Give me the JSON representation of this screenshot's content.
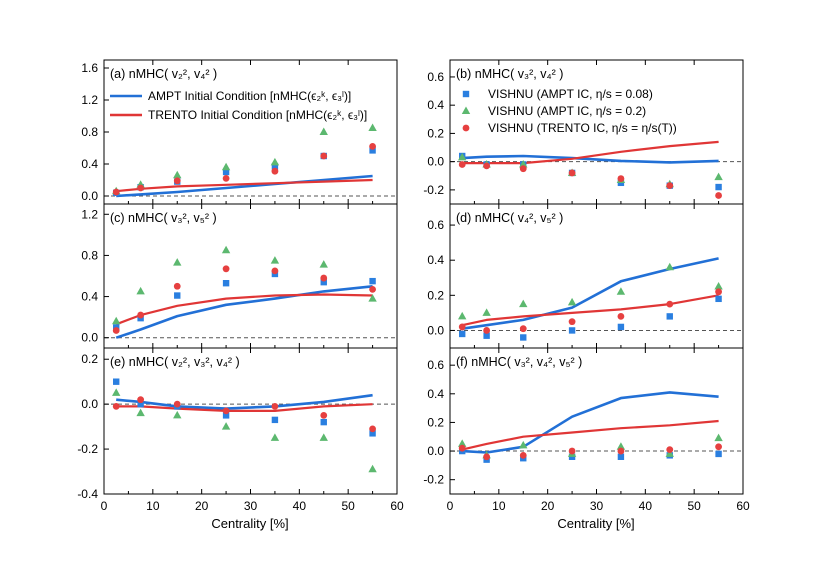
{
  "colors": {
    "ampt": "#2270d6",
    "trento": "#e03636",
    "vis008": "#2a7fe0",
    "vis02": "#5cb86f",
    "vistrento": "#e64040",
    "axis": "#000000",
    "zero": "#555555"
  },
  "chart_data": {
    "type": "scatter",
    "xlabel": "Centrality [%]",
    "xlim": [
      0,
      60
    ],
    "xticks": [
      0,
      10,
      20,
      30,
      40,
      50,
      60
    ],
    "legend_model": [
      {
        "key": "ampt",
        "label": "AMPT Initial Condition [nMHC(ϵ₂ᵏ, ϵ₃ˡ)]",
        "marker": "line"
      },
      {
        "key": "trento",
        "label": "TRENTO Initial Condition [nMHC(ϵ₂ᵏ, ϵ₃ˡ)]",
        "marker": "line"
      }
    ],
    "legend_data": [
      {
        "key": "vis008",
        "label": "VISHNU (AMPT IC, η/s = 0.08)",
        "marker": "square"
      },
      {
        "key": "vis02",
        "label": "VISHNU (AMPT IC, η/s = 0.2)",
        "marker": "triangle"
      },
      {
        "key": "vistrento",
        "label": "VISHNU (TRENTO IC, η/s = η/s(T))",
        "marker": "circle"
      }
    ],
    "panels": [
      {
        "id": "a",
        "title": "(a) nMHC( v₂², v₄² )",
        "ylim": [
          -0.1,
          1.7
        ],
        "yticks": [
          0.0,
          0.4,
          0.8,
          1.2,
          1.6
        ],
        "lines": {
          "ampt": [
            [
              2.5,
              0.0
            ],
            [
              7.5,
              0.02
            ],
            [
              15,
              0.05
            ],
            [
              25,
              0.1
            ],
            [
              35,
              0.15
            ],
            [
              45,
              0.2
            ],
            [
              55,
              0.25
            ]
          ],
          "trento": [
            [
              2.5,
              0.06
            ],
            [
              7.5,
              0.09
            ],
            [
              15,
              0.12
            ],
            [
              25,
              0.14
            ],
            [
              35,
              0.16
            ],
            [
              45,
              0.18
            ],
            [
              55,
              0.2
            ]
          ]
        },
        "points": {
          "vis008": [
            [
              2.5,
              0.04
            ],
            [
              7.5,
              0.11
            ],
            [
              15,
              0.18
            ],
            [
              25,
              0.3
            ],
            [
              35,
              0.37
            ],
            [
              45,
              0.5
            ],
            [
              55,
              0.57
            ]
          ],
          "vis02": [
            [
              2.5,
              0.06
            ],
            [
              7.5,
              0.14
            ],
            [
              15,
              0.26
            ],
            [
              25,
              0.36
            ],
            [
              35,
              0.42
            ],
            [
              45,
              0.8
            ],
            [
              55,
              0.85
            ]
          ],
          "vistrento": [
            [
              2.5,
              0.05
            ],
            [
              7.5,
              0.1
            ],
            [
              15,
              0.19
            ],
            [
              25,
              0.22
            ],
            [
              35,
              0.31
            ],
            [
              45,
              0.5
            ],
            [
              55,
              0.62
            ]
          ]
        }
      },
      {
        "id": "b",
        "title": "(b) nMHC( v₃², v₄² )",
        "ylim": [
          -0.3,
          0.72
        ],
        "yticks": [
          -0.2,
          0.0,
          0.2,
          0.4,
          0.6
        ],
        "lines": {
          "ampt": [
            [
              2.5,
              0.025
            ],
            [
              7.5,
              0.035
            ],
            [
              15,
              0.04
            ],
            [
              25,
              0.025
            ],
            [
              35,
              0.005
            ],
            [
              45,
              -0.005
            ],
            [
              55,
              0.005
            ]
          ],
          "trento": [
            [
              2.5,
              -0.01
            ],
            [
              7.5,
              -0.01
            ],
            [
              15,
              -0.01
            ],
            [
              25,
              0.02
            ],
            [
              35,
              0.07
            ],
            [
              45,
              0.11
            ],
            [
              55,
              0.14
            ]
          ]
        },
        "points": {
          "vis008": [
            [
              2.5,
              0.04
            ],
            [
              7.5,
              -0.02
            ],
            [
              15,
              -0.02
            ],
            [
              25,
              -0.08
            ],
            [
              35,
              -0.15
            ],
            [
              45,
              -0.17
            ],
            [
              55,
              -0.18
            ]
          ],
          "vis02": [
            [
              2.5,
              0.03
            ],
            [
              7.5,
              -0.02
            ],
            [
              15,
              -0.02
            ],
            [
              25,
              -0.08
            ],
            [
              35,
              -0.13
            ],
            [
              45,
              -0.16
            ],
            [
              55,
              -0.11
            ]
          ],
          "vistrento": [
            [
              2.5,
              -0.02
            ],
            [
              7.5,
              -0.03
            ],
            [
              15,
              -0.05
            ],
            [
              25,
              -0.08
            ],
            [
              35,
              -0.12
            ],
            [
              45,
              -0.17
            ],
            [
              55,
              -0.24
            ]
          ]
        }
      },
      {
        "id": "c",
        "title": "(c) nMHC( v₃², v₅² )",
        "ylim": [
          -0.1,
          1.3
        ],
        "yticks": [
          0.0,
          0.4,
          0.8,
          1.2
        ],
        "lines": {
          "ampt": [
            [
              2.5,
              0.0
            ],
            [
              7.5,
              0.08
            ],
            [
              15,
              0.21
            ],
            [
              25,
              0.32
            ],
            [
              35,
              0.38
            ],
            [
              45,
              0.45
            ],
            [
              55,
              0.5
            ]
          ],
          "trento": [
            [
              2.5,
              0.13
            ],
            [
              7.5,
              0.22
            ],
            [
              15,
              0.31
            ],
            [
              25,
              0.38
            ],
            [
              35,
              0.41
            ],
            [
              45,
              0.42
            ],
            [
              55,
              0.41
            ]
          ]
        },
        "points": {
          "vis008": [
            [
              2.5,
              0.1
            ],
            [
              7.5,
              0.19
            ],
            [
              15,
              0.41
            ],
            [
              25,
              0.53
            ],
            [
              35,
              0.62
            ],
            [
              45,
              0.54
            ],
            [
              55,
              0.55
            ]
          ],
          "vis02": [
            [
              2.5,
              0.16
            ],
            [
              7.5,
              0.45
            ],
            [
              15,
              0.73
            ],
            [
              25,
              0.85
            ],
            [
              35,
              0.75
            ],
            [
              45,
              0.71
            ],
            [
              55,
              0.38
            ]
          ],
          "vistrento": [
            [
              2.5,
              0.07
            ],
            [
              7.5,
              0.22
            ],
            [
              15,
              0.5
            ],
            [
              25,
              0.67
            ],
            [
              35,
              0.65
            ],
            [
              45,
              0.58
            ],
            [
              55,
              0.47
            ]
          ]
        }
      },
      {
        "id": "d",
        "title": "(d) nMHC( v₄², v₅² )",
        "ylim": [
          -0.1,
          0.72
        ],
        "yticks": [
          0.0,
          0.2,
          0.4,
          0.6
        ],
        "lines": {
          "ampt": [
            [
              2.5,
              0.01
            ],
            [
              7.5,
              0.03
            ],
            [
              15,
              0.06
            ],
            [
              25,
              0.13
            ],
            [
              35,
              0.28
            ],
            [
              45,
              0.35
            ],
            [
              55,
              0.41
            ]
          ],
          "trento": [
            [
              2.5,
              0.03
            ],
            [
              7.5,
              0.06
            ],
            [
              15,
              0.08
            ],
            [
              25,
              0.1
            ],
            [
              35,
              0.12
            ],
            [
              45,
              0.15
            ],
            [
              55,
              0.2
            ]
          ]
        },
        "points": {
          "vis008": [
            [
              2.5,
              -0.02
            ],
            [
              7.5,
              -0.03
            ],
            [
              15,
              -0.04
            ],
            [
              25,
              0.0
            ],
            [
              35,
              0.02
            ],
            [
              45,
              0.08
            ],
            [
              55,
              0.18
            ]
          ],
          "vis02": [
            [
              2.5,
              0.08
            ],
            [
              7.5,
              0.1
            ],
            [
              15,
              0.15
            ],
            [
              25,
              0.16
            ],
            [
              35,
              0.22
            ],
            [
              45,
              0.36
            ],
            [
              55,
              0.25
            ]
          ],
          "vistrento": [
            [
              2.5,
              0.02
            ],
            [
              7.5,
              0.0
            ],
            [
              15,
              0.01
            ],
            [
              25,
              0.05
            ],
            [
              35,
              0.08
            ],
            [
              45,
              0.15
            ],
            [
              55,
              0.22
            ]
          ]
        }
      },
      {
        "id": "e",
        "title": "(e) nMHC( v₂², v₃², v₄² )",
        "ylim": [
          -0.4,
          0.25
        ],
        "yticks": [
          -0.4,
          -0.2,
          0.0,
          0.2
        ],
        "lines": {
          "ampt": [
            [
              2.5,
              0.02
            ],
            [
              7.5,
              0.01
            ],
            [
              15,
              -0.01
            ],
            [
              25,
              -0.02
            ],
            [
              35,
              -0.01
            ],
            [
              45,
              0.01
            ],
            [
              55,
              0.04
            ]
          ],
          "trento": [
            [
              2.5,
              -0.01
            ],
            [
              7.5,
              -0.01
            ],
            [
              15,
              -0.02
            ],
            [
              25,
              -0.03
            ],
            [
              35,
              -0.03
            ],
            [
              45,
              -0.01
            ],
            [
              55,
              0.0
            ]
          ]
        },
        "points": {
          "vis008": [
            [
              2.5,
              0.1
            ],
            [
              7.5,
              0.0
            ],
            [
              15,
              -0.01
            ],
            [
              25,
              -0.05
            ],
            [
              35,
              -0.07
            ],
            [
              45,
              -0.08
            ],
            [
              55,
              -0.13
            ]
          ],
          "vis02": [
            [
              2.5,
              0.05
            ],
            [
              7.5,
              -0.04
            ],
            [
              15,
              -0.05
            ],
            [
              25,
              -0.1
            ],
            [
              35,
              -0.15
            ],
            [
              45,
              -0.15
            ],
            [
              55,
              -0.29
            ]
          ],
          "vistrento": [
            [
              2.5,
              -0.01
            ],
            [
              7.5,
              0.02
            ],
            [
              15,
              0.0
            ],
            [
              25,
              -0.03
            ],
            [
              35,
              -0.01
            ],
            [
              45,
              -0.05
            ],
            [
              55,
              -0.11
            ]
          ]
        }
      },
      {
        "id": "f",
        "title": "(f) nMHC( v₃², v₄², v₅² )",
        "ylim": [
          -0.3,
          0.72
        ],
        "yticks": [
          -0.2,
          0.0,
          0.2,
          0.4,
          0.6
        ],
        "lines": {
          "ampt": [
            [
              2.5,
              0.0
            ],
            [
              7.5,
              -0.01
            ],
            [
              15,
              0.03
            ],
            [
              25,
              0.24
            ],
            [
              35,
              0.37
            ],
            [
              45,
              0.41
            ],
            [
              55,
              0.38
            ]
          ],
          "trento": [
            [
              2.5,
              0.01
            ],
            [
              7.5,
              0.05
            ],
            [
              15,
              0.1
            ],
            [
              25,
              0.13
            ],
            [
              35,
              0.16
            ],
            [
              45,
              0.18
            ],
            [
              55,
              0.21
            ]
          ]
        },
        "points": {
          "vis008": [
            [
              2.5,
              0.0
            ],
            [
              7.5,
              -0.06
            ],
            [
              15,
              -0.05
            ],
            [
              25,
              -0.04
            ],
            [
              35,
              -0.04
            ],
            [
              45,
              -0.03
            ],
            [
              55,
              -0.02
            ]
          ],
          "vis02": [
            [
              2.5,
              0.05
            ],
            [
              7.5,
              -0.03
            ],
            [
              15,
              0.04
            ],
            [
              25,
              -0.02
            ],
            [
              35,
              0.03
            ],
            [
              45,
              -0.02
            ],
            [
              55,
              0.09
            ]
          ],
          "vistrento": [
            [
              2.5,
              0.02
            ],
            [
              7.5,
              -0.04
            ],
            [
              15,
              -0.03
            ],
            [
              25,
              0.0
            ],
            [
              35,
              0.0
            ],
            [
              45,
              0.01
            ],
            [
              55,
              0.03
            ]
          ]
        }
      }
    ]
  }
}
